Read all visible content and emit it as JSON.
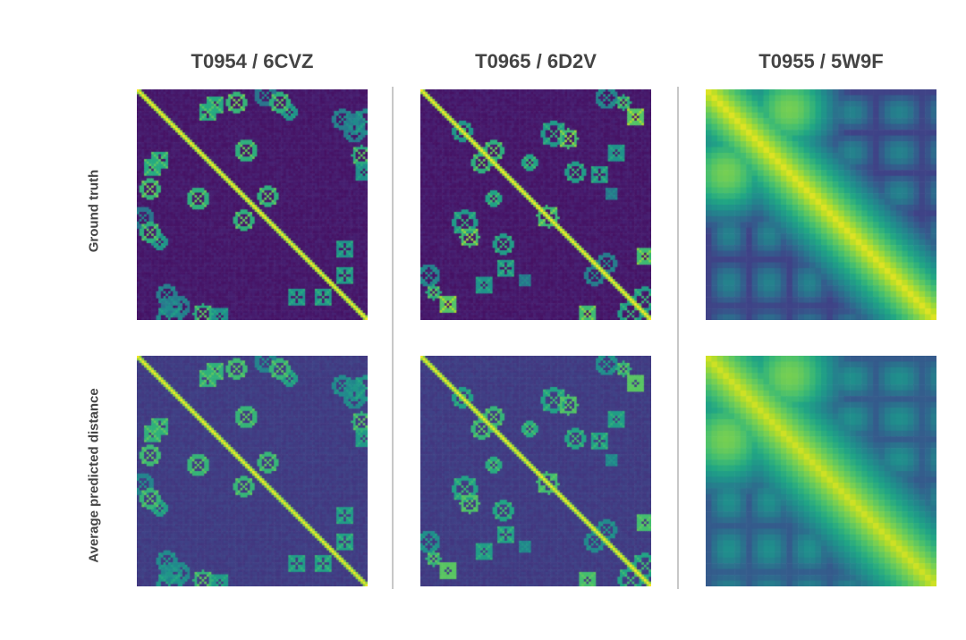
{
  "chart_data": {
    "type": "heatmap",
    "colormap": "viridis",
    "columns": [
      {
        "title": "T0954 / 6CVZ",
        "grid": 96,
        "style": "crisp-lattice"
      },
      {
        "title": "T0965 / 6D2V",
        "grid": 96,
        "style": "crisp-blobs"
      },
      {
        "title": "T0955 / 5W9F",
        "grid": 40,
        "style": "coarse"
      }
    ],
    "rows": [
      {
        "label": "Ground truth"
      },
      {
        "label": "Average predicted distance"
      }
    ]
  }
}
